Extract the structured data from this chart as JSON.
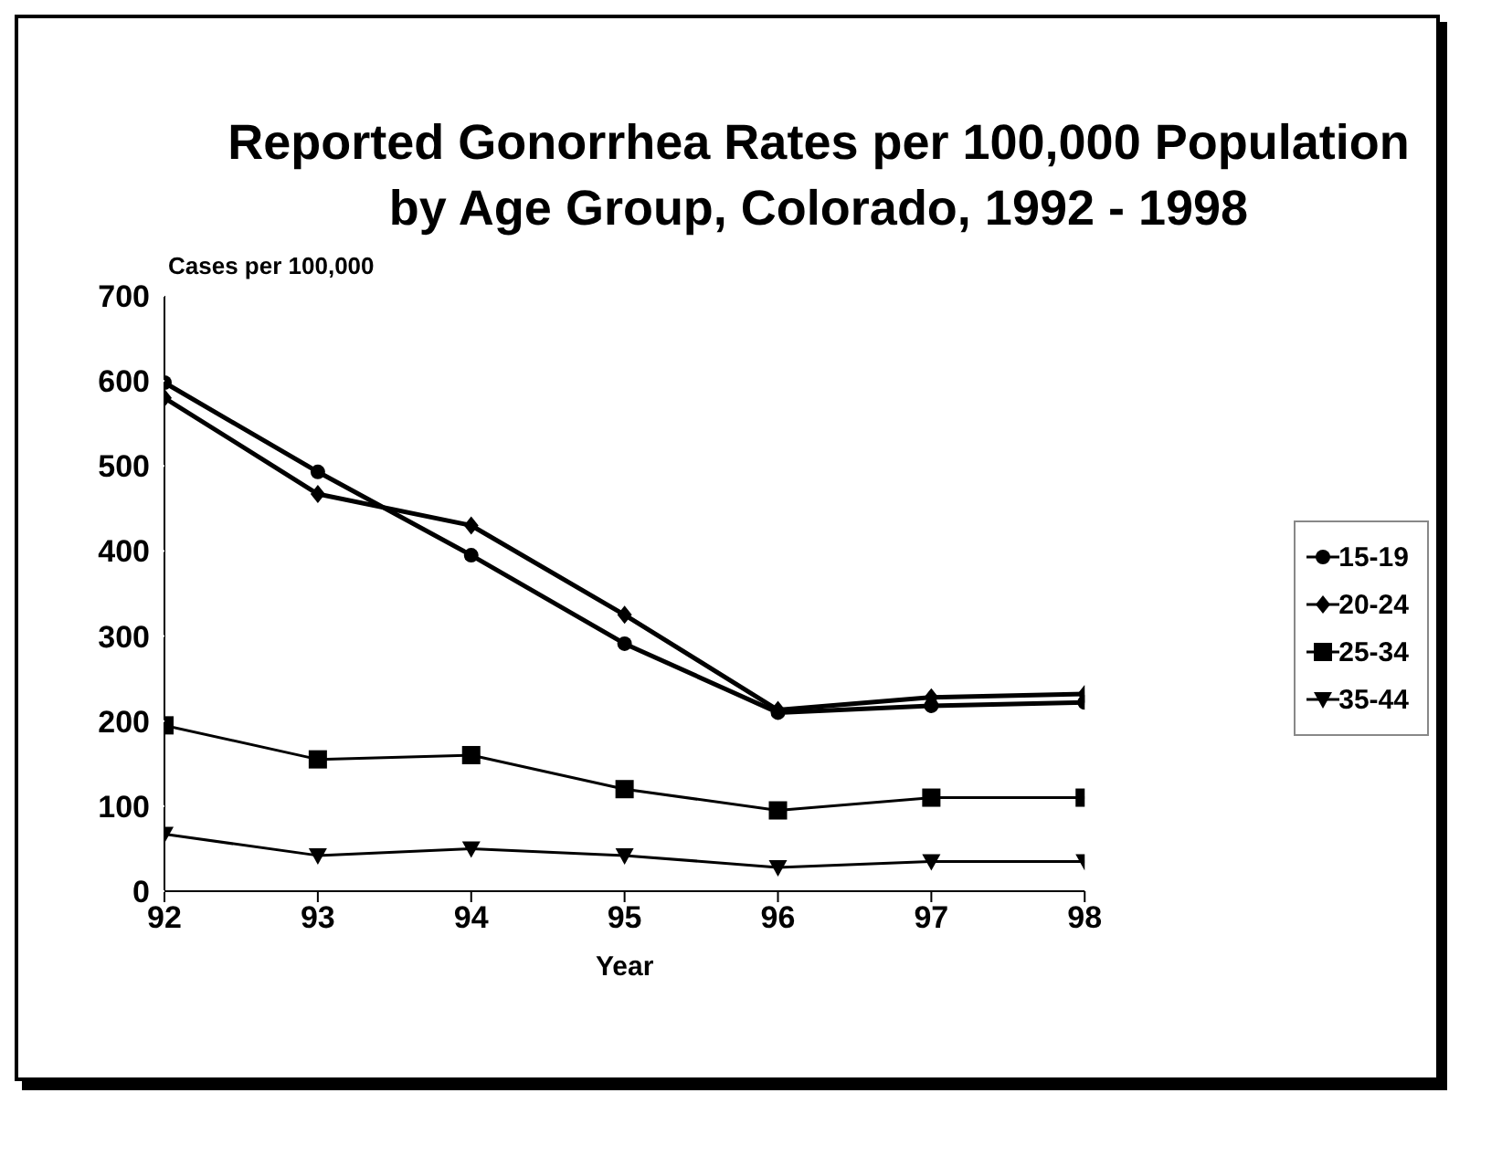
{
  "chart_data": {
    "type": "line",
    "title": "Reported Gonorrhea Rates per 100,000 Population\nby Age Group, Colorado, 1992 - 1998",
    "xlabel": "Year",
    "ylabel": "Cases per 100,000",
    "x": [
      92,
      93,
      94,
      95,
      96,
      97,
      98
    ],
    "xlim": [
      92,
      98
    ],
    "xticks": [
      92,
      93,
      94,
      95,
      96,
      97,
      98
    ],
    "ylim": [
      0,
      700
    ],
    "yticks": [
      0,
      100,
      200,
      300,
      400,
      500,
      600,
      700
    ],
    "grid": false,
    "legend": "right",
    "series": [
      {
        "name": "15-19",
        "color": "#000000",
        "marker": "circle",
        "values": [
          598,
          493,
          395,
          291,
          210,
          218,
          222
        ]
      },
      {
        "name": "20-24",
        "color": "#000000",
        "marker": "diamond",
        "values": [
          580,
          467,
          430,
          325,
          213,
          228,
          232
        ]
      },
      {
        "name": "25-34",
        "color": "#000000",
        "marker": "square",
        "values": [
          195,
          155,
          160,
          120,
          95,
          110,
          110
        ]
      },
      {
        "name": "35-44",
        "color": "#000000",
        "marker": "triangle",
        "values": [
          67,
          42,
          50,
          42,
          28,
          35,
          35
        ]
      }
    ]
  }
}
